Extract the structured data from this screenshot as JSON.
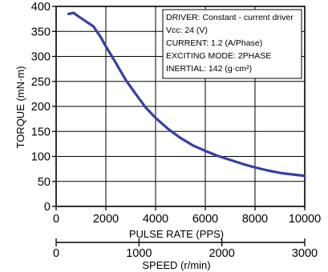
{
  "chart_data": {
    "type": "line",
    "title": "",
    "ylabel": "TORQUE (mN·m)",
    "xlabel": "PULSE RATE (PPS)",
    "secondary_xlabel": "SPEED (r/min)",
    "xlim": [
      0,
      10000
    ],
    "ylim": [
      0,
      400
    ],
    "secondary_xlim": [
      0,
      3000
    ],
    "x_ticks": [
      "0",
      "2000",
      "4000",
      "6000",
      "8000",
      "10000"
    ],
    "y_ticks": [
      "0",
      "50",
      "100",
      "150",
      "200",
      "250",
      "300",
      "350",
      "400"
    ],
    "secondary_x_ticks": [
      "0",
      "1000",
      "2000",
      "3000"
    ],
    "grid": true,
    "series": [
      {
        "color": "#3a3fa0",
        "x": [
          500,
          700,
          900,
          1200,
          1500,
          1800,
          2000,
          2400,
          2800,
          3200,
          3600,
          4000,
          4500,
          5000,
          5500,
          6000,
          6500,
          7000,
          7500,
          8000,
          8500,
          9000,
          9500,
          10000
        ],
        "y": [
          385,
          387,
          380,
          370,
          360,
          338,
          320,
          287,
          253,
          225,
          198,
          177,
          155,
          137,
          122,
          111,
          101,
          93,
          85,
          78,
          72,
          67,
          64,
          61
        ]
      }
    ],
    "info_box": [
      "DRIVER: Constant - current driver",
      "Vcc: 24 (V)",
      "CURRENT: 1.2 (A/Phase)",
      "EXCITING MODE: 2PHASE",
      "INERTIAL: 142 (g·cm²)"
    ]
  }
}
